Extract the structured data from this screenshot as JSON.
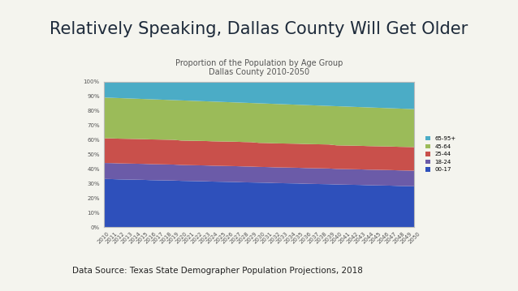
{
  "slide": {
    "title": "Relatively Speaking, Dallas County Will Get Older",
    "source": "Data Source: Texas State Demographer Population Projections, 2018"
  },
  "chart_data": {
    "type": "stacked_area",
    "title": "Proportion of the Population by Age Group",
    "subtitle": "Dallas County 2010-2050",
    "stacked": true,
    "grid": false,
    "legend": "right",
    "categories": [
      "2010",
      "2011",
      "2012",
      "2013",
      "2014",
      "2015",
      "2016",
      "2017",
      "2018",
      "2019",
      "2020",
      "2021",
      "2022",
      "2023",
      "2024",
      "2025",
      "2026",
      "2027",
      "2028",
      "2029",
      "2030",
      "2031",
      "2032",
      "2033",
      "2034",
      "2035",
      "2036",
      "2037",
      "2038",
      "2039",
      "2040",
      "2041",
      "2042",
      "2043",
      "2044",
      "2045",
      "2046",
      "2047",
      "2048",
      "2049",
      "2050"
    ],
    "ylim": [
      0,
      100
    ],
    "yticks": [
      {
        "value": 0,
        "label": "0%"
      },
      {
        "value": 10,
        "label": "10%"
      },
      {
        "value": 20,
        "label": "20%"
      },
      {
        "value": 30,
        "label": "30%"
      },
      {
        "value": 40,
        "label": "40%"
      },
      {
        "value": 50,
        "label": "50%"
      },
      {
        "value": 60,
        "label": "60%"
      },
      {
        "value": 70,
        "label": "70%"
      },
      {
        "value": 80,
        "label": "80%"
      },
      {
        "value": 90,
        "label": "90%"
      },
      {
        "value": 100,
        "label": "100%"
      }
    ],
    "series": [
      {
        "name": "00-17",
        "color": "#2e50bb",
        "values": [
          33.0,
          32.9,
          32.7,
          32.6,
          32.5,
          32.4,
          32.2,
          32.1,
          32.0,
          31.9,
          31.7,
          31.6,
          31.5,
          31.4,
          31.2,
          31.1,
          31.0,
          30.9,
          30.7,
          30.6,
          30.5,
          30.4,
          30.2,
          30.1,
          30.0,
          29.9,
          29.7,
          29.6,
          29.5,
          29.4,
          29.2,
          29.1,
          29.0,
          28.9,
          28.7,
          28.6,
          28.5,
          28.4,
          28.2,
          28.1,
          28.0
        ]
      },
      {
        "name": "18-24",
        "color": "#6b5ba8",
        "values": [
          11.0,
          11.0,
          11.0,
          11.0,
          11.0,
          11.0,
          11.0,
          11.0,
          11.0,
          11.0,
          10.9,
          10.9,
          10.9,
          10.9,
          10.9,
          10.9,
          10.9,
          10.9,
          10.9,
          10.9,
          10.8,
          10.8,
          10.8,
          10.8,
          10.8,
          10.8,
          10.8,
          10.8,
          10.8,
          10.8,
          10.7,
          10.7,
          10.7,
          10.7,
          10.7,
          10.7,
          10.7,
          10.7,
          10.7,
          10.7,
          10.7
        ]
      },
      {
        "name": "25-44",
        "color": "#c9504b",
        "values": [
          17.0,
          17.0,
          17.0,
          17.0,
          17.0,
          17.0,
          17.0,
          17.0,
          17.0,
          17.0,
          16.8,
          16.8,
          16.8,
          16.8,
          16.8,
          16.8,
          16.8,
          16.8,
          16.8,
          16.8,
          16.5,
          16.5,
          16.5,
          16.5,
          16.5,
          16.5,
          16.5,
          16.5,
          16.5,
          16.5,
          16.2,
          16.2,
          16.2,
          16.2,
          16.2,
          16.2,
          16.2,
          16.2,
          16.2,
          16.2,
          16.2
        ]
      },
      {
        "name": "45-64",
        "color": "#9bbb59",
        "values": [
          28.0,
          27.9,
          27.9,
          27.8,
          27.7,
          27.6,
          27.6,
          27.5,
          27.4,
          27.3,
          27.6,
          27.5,
          27.4,
          27.3,
          27.3,
          27.2,
          27.1,
          27.0,
          27.0,
          26.9,
          27.2,
          27.1,
          27.1,
          27.0,
          26.9,
          26.8,
          26.8,
          26.7,
          26.6,
          26.5,
          26.9,
          26.8,
          26.7,
          26.6,
          26.6,
          26.5,
          26.4,
          26.3,
          26.3,
          26.2,
          26.1
        ]
      },
      {
        "name": "65-95+",
        "color": "#4bacc6",
        "values": [
          11.0,
          11.2,
          11.4,
          11.6,
          11.8,
          12.0,
          12.2,
          12.4,
          12.6,
          12.8,
          13.0,
          13.2,
          13.4,
          13.6,
          13.8,
          14.0,
          14.2,
          14.4,
          14.6,
          14.8,
          15.0,
          15.2,
          15.4,
          15.6,
          15.8,
          16.0,
          16.2,
          16.4,
          16.6,
          16.8,
          17.0,
          17.2,
          17.4,
          17.6,
          17.8,
          18.0,
          18.2,
          18.4,
          18.6,
          18.8,
          19.0
        ]
      }
    ]
  }
}
